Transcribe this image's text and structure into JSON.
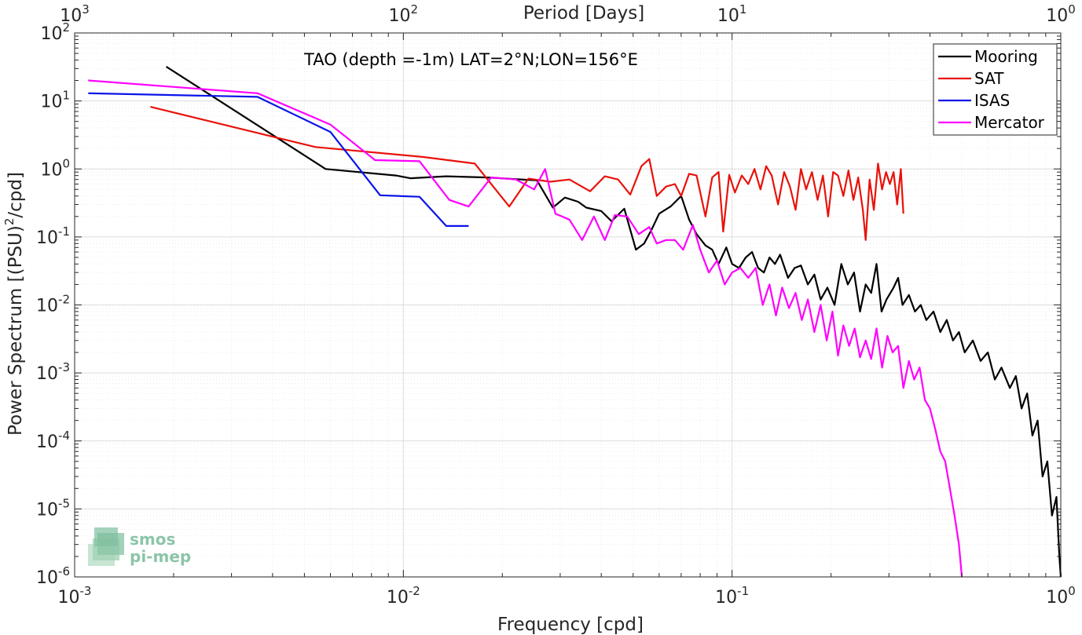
{
  "chart_data": {
    "type": "line",
    "annotation": "TAO (depth =-1m) LAT=2°N;LON=156°E",
    "xlabel": "Frequency [cpd]",
    "ylabel_prefix": "Power Spectrum [(PSU)",
    "ylabel_sup": "2",
    "ylabel_suffix": "/cpd]",
    "top_xlabel": "Period [Days]",
    "xscale": "log",
    "yscale": "log",
    "xlim": [
      0.001,
      1
    ],
    "ylim": [
      1e-06,
      100
    ],
    "grid": true,
    "legend_position": "top-right",
    "x_ticks": [
      {
        "value": 0.001,
        "base": "10",
        "exp": "-3"
      },
      {
        "value": 0.01,
        "base": "10",
        "exp": "-2"
      },
      {
        "value": 0.1,
        "base": "10",
        "exp": "-1"
      },
      {
        "value": 1,
        "base": "10",
        "exp": "0"
      }
    ],
    "top_ticks": [
      {
        "value": 0.001,
        "base": "10",
        "exp": "3"
      },
      {
        "value": 0.01,
        "base": "10",
        "exp": "2"
      },
      {
        "value": 0.1,
        "base": "10",
        "exp": "1"
      },
      {
        "value": 1,
        "base": "10",
        "exp": "0"
      }
    ],
    "y_ticks": [
      {
        "value": 100,
        "base": "10",
        "exp": "2"
      },
      {
        "value": 10,
        "base": "10",
        "exp": "1"
      },
      {
        "value": 1,
        "base": "10",
        "exp": "0"
      },
      {
        "value": 0.1,
        "base": "10",
        "exp": "-1"
      },
      {
        "value": 0.01,
        "base": "10",
        "exp": "-2"
      },
      {
        "value": 0.001,
        "base": "10",
        "exp": "-3"
      },
      {
        "value": 0.0001,
        "base": "10",
        "exp": "-4"
      },
      {
        "value": 1e-05,
        "base": "10",
        "exp": "-5"
      },
      {
        "value": 1e-06,
        "base": "10",
        "exp": "-6"
      }
    ],
    "series": [
      {
        "name": "Mooring",
        "color": "#000000",
        "points": [
          [
            0.0019,
            32
          ],
          [
            0.0058,
            1.0
          ],
          [
            0.0095,
            0.8
          ],
          [
            0.0105,
            0.73
          ],
          [
            0.0135,
            0.78
          ],
          [
            0.018,
            0.75
          ],
          [
            0.0255,
            0.68
          ],
          [
            0.0285,
            0.27
          ],
          [
            0.031,
            0.38
          ],
          [
            0.034,
            0.33
          ],
          [
            0.036,
            0.27
          ],
          [
            0.04,
            0.24
          ],
          [
            0.043,
            0.17
          ],
          [
            0.047,
            0.26
          ],
          [
            0.051,
            0.065
          ],
          [
            0.054,
            0.08
          ],
          [
            0.057,
            0.13
          ],
          [
            0.06,
            0.22
          ],
          [
            0.065,
            0.28
          ],
          [
            0.07,
            0.4
          ],
          [
            0.074,
            0.18
          ],
          [
            0.078,
            0.11
          ],
          [
            0.083,
            0.075
          ],
          [
            0.087,
            0.065
          ],
          [
            0.091,
            0.04
          ],
          [
            0.096,
            0.07
          ],
          [
            0.1,
            0.04
          ],
          [
            0.105,
            0.035
          ],
          [
            0.11,
            0.05
          ],
          [
            0.115,
            0.06
          ],
          [
            0.12,
            0.035
          ],
          [
            0.125,
            0.03
          ],
          [
            0.13,
            0.05
          ],
          [
            0.135,
            0.04
          ],
          [
            0.14,
            0.055
          ],
          [
            0.148,
            0.025
          ],
          [
            0.155,
            0.035
          ],
          [
            0.162,
            0.038
          ],
          [
            0.17,
            0.02
          ],
          [
            0.178,
            0.028
          ],
          [
            0.186,
            0.012
          ],
          [
            0.195,
            0.018
          ],
          [
            0.205,
            0.01
          ],
          [
            0.215,
            0.04
          ],
          [
            0.225,
            0.02
          ],
          [
            0.235,
            0.03
          ],
          [
            0.245,
            0.008
          ],
          [
            0.255,
            0.02
          ],
          [
            0.265,
            0.015
          ],
          [
            0.275,
            0.04
          ],
          [
            0.285,
            0.008
          ],
          [
            0.295,
            0.012
          ],
          [
            0.31,
            0.018
          ],
          [
            0.32,
            0.025
          ],
          [
            0.33,
            0.01
          ],
          [
            0.345,
            0.014
          ],
          [
            0.36,
            0.008
          ],
          [
            0.375,
            0.01
          ],
          [
            0.39,
            0.006
          ],
          [
            0.41,
            0.008
          ],
          [
            0.43,
            0.004
          ],
          [
            0.45,
            0.006
          ],
          [
            0.47,
            0.003
          ],
          [
            0.49,
            0.004
          ],
          [
            0.51,
            0.002
          ],
          [
            0.54,
            0.003
          ],
          [
            0.57,
            0.0015
          ],
          [
            0.6,
            0.002
          ],
          [
            0.63,
            0.0008
          ],
          [
            0.66,
            0.0012
          ],
          [
            0.7,
            0.0006
          ],
          [
            0.73,
            0.0009
          ],
          [
            0.76,
            0.0003
          ],
          [
            0.79,
            0.0005
          ],
          [
            0.82,
            0.00012
          ],
          [
            0.85,
            0.0002
          ],
          [
            0.88,
            3e-05
          ],
          [
            0.91,
            5e-05
          ],
          [
            0.94,
            8e-06
          ],
          [
            0.97,
            1.5e-05
          ],
          [
            0.99,
            2e-06
          ],
          [
            1.0,
            8e-07
          ]
        ]
      },
      {
        "name": "SAT",
        "color": "#e8120a",
        "points": [
          [
            0.0017,
            8.2
          ],
          [
            0.0054,
            2.1
          ],
          [
            0.0115,
            1.5
          ],
          [
            0.0165,
            1.2
          ],
          [
            0.021,
            0.28
          ],
          [
            0.024,
            0.72
          ],
          [
            0.028,
            0.65
          ],
          [
            0.032,
            0.7
          ],
          [
            0.037,
            0.47
          ],
          [
            0.041,
            0.78
          ],
          [
            0.045,
            0.7
          ],
          [
            0.049,
            0.42
          ],
          [
            0.053,
            1.1
          ],
          [
            0.056,
            1.4
          ],
          [
            0.059,
            0.4
          ],
          [
            0.063,
            0.55
          ],
          [
            0.067,
            0.6
          ],
          [
            0.07,
            0.4
          ],
          [
            0.074,
            0.85
          ],
          [
            0.078,
            0.8
          ],
          [
            0.083,
            0.2
          ],
          [
            0.087,
            0.75
          ],
          [
            0.091,
            0.9
          ],
          [
            0.094,
            0.12
          ],
          [
            0.098,
            0.82
          ],
          [
            0.102,
            0.45
          ],
          [
            0.107,
            0.8
          ],
          [
            0.112,
            0.6
          ],
          [
            0.117,
            1.0
          ],
          [
            0.122,
            0.5
          ],
          [
            0.127,
            1.1
          ],
          [
            0.132,
            0.8
          ],
          [
            0.138,
            0.3
          ],
          [
            0.144,
            0.9
          ],
          [
            0.15,
            0.55
          ],
          [
            0.156,
            0.25
          ],
          [
            0.162,
            1.0
          ],
          [
            0.168,
            0.5
          ],
          [
            0.175,
            0.9
          ],
          [
            0.182,
            0.35
          ],
          [
            0.189,
            0.8
          ],
          [
            0.196,
            0.2
          ],
          [
            0.203,
            0.9
          ],
          [
            0.21,
            0.8
          ],
          [
            0.218,
            0.4
          ],
          [
            0.226,
            0.95
          ],
          [
            0.234,
            0.35
          ],
          [
            0.242,
            0.75
          ],
          [
            0.25,
            0.25
          ],
          [
            0.255,
            0.09
          ],
          [
            0.262,
            0.7
          ],
          [
            0.27,
            0.25
          ],
          [
            0.278,
            1.2
          ],
          [
            0.286,
            0.5
          ],
          [
            0.294,
            0.9
          ],
          [
            0.302,
            0.6
          ],
          [
            0.31,
            0.9
          ],
          [
            0.318,
            0.3
          ],
          [
            0.326,
            1.0
          ],
          [
            0.332,
            0.22
          ]
        ]
      },
      {
        "name": "ISAS",
        "color": "#0a14e8",
        "points": [
          [
            0.0011,
            13
          ],
          [
            0.0036,
            11.5
          ],
          [
            0.006,
            3.5
          ],
          [
            0.0085,
            0.41
          ],
          [
            0.0112,
            0.39
          ],
          [
            0.0135,
            0.145
          ],
          [
            0.0158,
            0.145
          ]
        ]
      },
      {
        "name": "Mercator",
        "color": "#ff00ff",
        "points": [
          [
            0.0011,
            20
          ],
          [
            0.0036,
            13
          ],
          [
            0.006,
            4.5
          ],
          [
            0.0082,
            1.35
          ],
          [
            0.0112,
            1.3
          ],
          [
            0.0138,
            0.35
          ],
          [
            0.0158,
            0.28
          ],
          [
            0.0185,
            0.75
          ],
          [
            0.022,
            0.7
          ],
          [
            0.025,
            0.5
          ],
          [
            0.027,
            1.0
          ],
          [
            0.029,
            0.22
          ],
          [
            0.032,
            0.18
          ],
          [
            0.035,
            0.09
          ],
          [
            0.038,
            0.2
          ],
          [
            0.041,
            0.09
          ],
          [
            0.044,
            0.21
          ],
          [
            0.048,
            0.2
          ],
          [
            0.052,
            0.11
          ],
          [
            0.056,
            0.14
          ],
          [
            0.059,
            0.08
          ],
          [
            0.063,
            0.09
          ],
          [
            0.067,
            0.09
          ],
          [
            0.071,
            0.065
          ],
          [
            0.076,
            0.15
          ],
          [
            0.08,
            0.065
          ],
          [
            0.085,
            0.03
          ],
          [
            0.09,
            0.045
          ],
          [
            0.095,
            0.02
          ],
          [
            0.1,
            0.03
          ],
          [
            0.106,
            0.035
          ],
          [
            0.112,
            0.025
          ],
          [
            0.118,
            0.035
          ],
          [
            0.124,
            0.01
          ],
          [
            0.13,
            0.02
          ],
          [
            0.136,
            0.007
          ],
          [
            0.142,
            0.018
          ],
          [
            0.149,
            0.009
          ],
          [
            0.156,
            0.015
          ],
          [
            0.163,
            0.006
          ],
          [
            0.17,
            0.012
          ],
          [
            0.178,
            0.004
          ],
          [
            0.186,
            0.01
          ],
          [
            0.194,
            0.003
          ],
          [
            0.202,
            0.008
          ],
          [
            0.21,
            0.0018
          ],
          [
            0.218,
            0.005
          ],
          [
            0.227,
            0.0025
          ],
          [
            0.236,
            0.0045
          ],
          [
            0.245,
            0.0017
          ],
          [
            0.255,
            0.003
          ],
          [
            0.265,
            0.0016
          ],
          [
            0.275,
            0.0045
          ],
          [
            0.286,
            0.0012
          ],
          [
            0.297,
            0.0035
          ],
          [
            0.308,
            0.002
          ],
          [
            0.32,
            0.0025
          ],
          [
            0.332,
            0.0006
          ],
          [
            0.345,
            0.0015
          ],
          [
            0.358,
            0.0008
          ],
          [
            0.372,
            0.0012
          ],
          [
            0.386,
            0.0004
          ],
          [
            0.4,
            0.0003
          ],
          [
            0.415,
            0.00015
          ],
          [
            0.43,
            7e-05
          ],
          [
            0.445,
            5e-05
          ],
          [
            0.46,
            2e-05
          ],
          [
            0.475,
            8e-06
          ],
          [
            0.49,
            3e-06
          ],
          [
            0.5,
            1e-06
          ]
        ]
      }
    ]
  },
  "watermark": {
    "line1": "smos",
    "line2": "pi-mep"
  }
}
